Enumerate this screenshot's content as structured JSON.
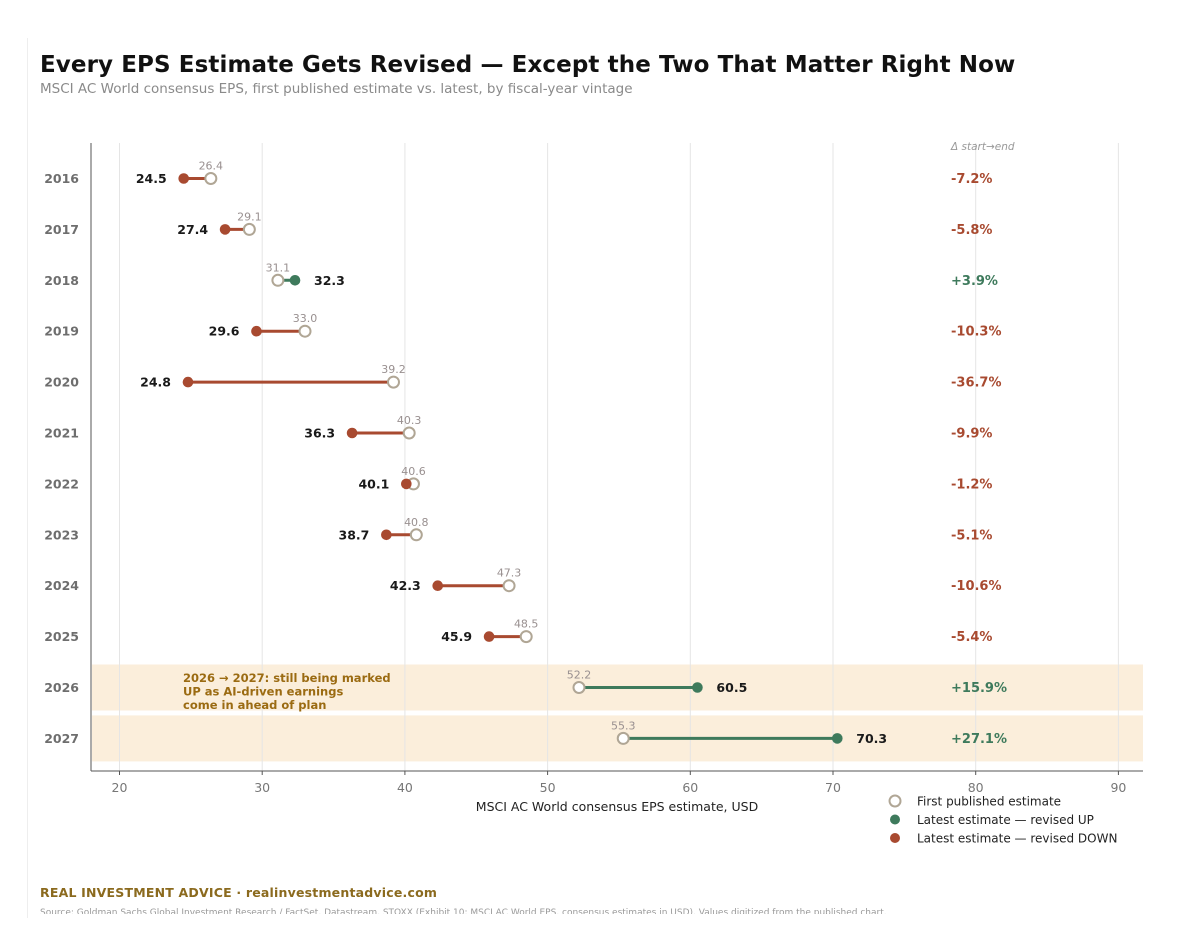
{
  "header": {
    "title": "Every EPS Estimate Gets Revised — Except the Two That Matter Right Now",
    "subtitle": "MSCI AC World consensus EPS, first published estimate vs. latest, by fiscal-year vintage"
  },
  "colors": {
    "down": "#a84a30",
    "up": "#3e7a5c",
    "first_marker": "#b0a695",
    "highlight_band": "#fbeedb",
    "annotation_text": "#9b6b12",
    "grid": "#e5e5e5"
  },
  "chart_data": {
    "type": "dumbbell",
    "xlabel": "MSCI AC World consensus EPS estimate, USD",
    "xlim": [
      18,
      92
    ],
    "xticks": [
      20,
      30,
      40,
      50,
      60,
      70,
      80,
      90
    ],
    "grid": "vertical",
    "change_column_header": "Δ start→end",
    "rows": [
      {
        "year": "2016",
        "first": 26.4,
        "latest": 24.5,
        "first_label": "26.4",
        "latest_label": "24.5",
        "change": "-7.2%",
        "direction": "down"
      },
      {
        "year": "2017",
        "first": 29.1,
        "latest": 27.4,
        "first_label": "29.1",
        "latest_label": "27.4",
        "change": "-5.8%",
        "direction": "down"
      },
      {
        "year": "2018",
        "first": 31.1,
        "latest": 32.3,
        "first_label": "31.1",
        "latest_label": "32.3",
        "change": "+3.9%",
        "direction": "up"
      },
      {
        "year": "2019",
        "first": 33.0,
        "latest": 29.6,
        "first_label": "33.0",
        "latest_label": "29.6",
        "change": "-10.3%",
        "direction": "down"
      },
      {
        "year": "2020",
        "first": 39.2,
        "latest": 24.8,
        "first_label": "39.2",
        "latest_label": "24.8",
        "change": "-36.7%",
        "direction": "down"
      },
      {
        "year": "2021",
        "first": 40.3,
        "latest": 36.3,
        "first_label": "40.3",
        "latest_label": "36.3",
        "change": "-9.9%",
        "direction": "down"
      },
      {
        "year": "2022",
        "first": 40.6,
        "latest": 40.1,
        "first_label": "40.6",
        "latest_label": "40.1",
        "change": "-1.2%",
        "direction": "down"
      },
      {
        "year": "2023",
        "first": 40.8,
        "latest": 38.7,
        "first_label": "40.8",
        "latest_label": "38.7",
        "change": "-5.1%",
        "direction": "down"
      },
      {
        "year": "2024",
        "first": 47.3,
        "latest": 42.3,
        "first_label": "47.3",
        "latest_label": "42.3",
        "change": "-10.6%",
        "direction": "down"
      },
      {
        "year": "2025",
        "first": 48.5,
        "latest": 45.9,
        "first_label": "48.5",
        "latest_label": "45.9",
        "change": "-5.4%",
        "direction": "down"
      },
      {
        "year": "2026",
        "first": 52.2,
        "latest": 60.5,
        "first_label": "52.2",
        "latest_label": "60.5",
        "change": "+15.9%",
        "direction": "up",
        "highlight": true
      },
      {
        "year": "2027",
        "first": 55.3,
        "latest": 70.3,
        "first_label": "55.3",
        "latest_label": "70.3",
        "change": "+27.1%",
        "direction": "up",
        "highlight": true
      }
    ],
    "annotation": [
      "2026 → 2027: still being marked",
      "UP as AI-driven earnings",
      "come in ahead of plan"
    ],
    "legend": {
      "placement": "bottom-right",
      "items": [
        {
          "label": "First published estimate",
          "marker": "open-circle"
        },
        {
          "label": "Latest estimate — revised UP",
          "marker": "up"
        },
        {
          "label": "Latest estimate — revised DOWN",
          "marker": "down"
        }
      ]
    }
  },
  "footer": {
    "brand": "REAL INVESTMENT ADVICE  ·  realinvestmentadvice.com",
    "source": "Source: Goldman Sachs Global Investment Research / FactSet, Datastream, STOXX (Exhibit 10: MSCI AC World EPS, consensus estimates in USD). Values digitized from the published chart."
  }
}
